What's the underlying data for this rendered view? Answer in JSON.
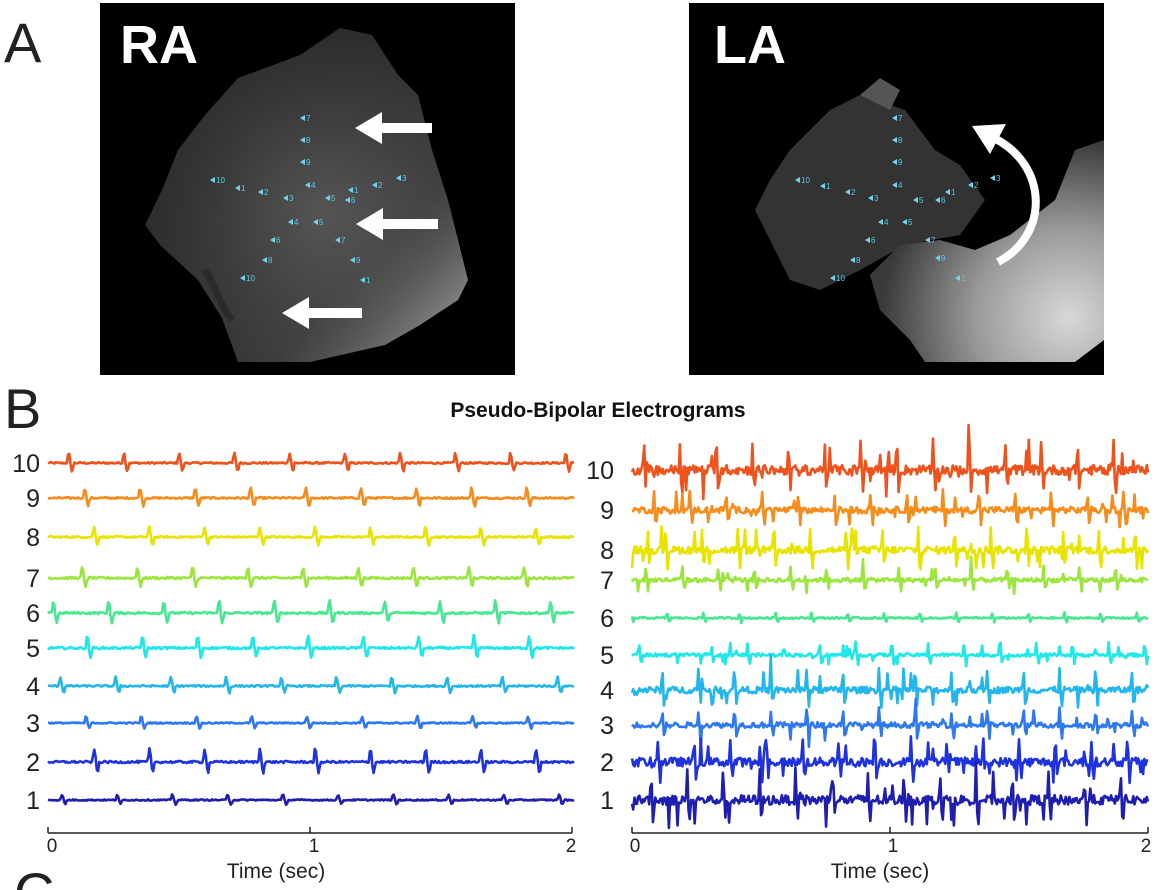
{
  "panel_a": {
    "letter": "A",
    "images": [
      {
        "title": "RA",
        "annotation": "three straight arrows (wavefront direction)"
      },
      {
        "title": "LA",
        "annotation": "curved arrow (rotational activation)"
      }
    ],
    "electrode_labels": [
      "7",
      "8",
      "9",
      "10",
      "1",
      "2",
      "3",
      "4",
      "5",
      "6",
      "1",
      "2",
      "3",
      "4",
      "5",
      "6",
      "7",
      "8",
      "9",
      "10",
      "1",
      "2",
      "3",
      "4",
      "5",
      "6",
      "7",
      "8",
      "9",
      "10",
      "11",
      "12",
      "13",
      "14"
    ]
  },
  "panel_b": {
    "letter": "B",
    "title": "Pseudo-Bipolar Electrograms",
    "channel_labels": [
      "10",
      "9",
      "8",
      "7",
      "6",
      "5",
      "4",
      "3",
      "2",
      "1"
    ],
    "colors": [
      "#f0521c",
      "#f68c1c",
      "#e8e400",
      "#9be63c",
      "#47e890",
      "#1ee8e8",
      "#23b6ec",
      "#2e78f0",
      "#1e32e0",
      "#1e1eb0"
    ],
    "xlabel": "Time (sec)",
    "xticks": [
      "0",
      "1",
      "2"
    ]
  },
  "panel_c": {
    "letter": "C"
  },
  "chart_data": [
    {
      "type": "line",
      "title": "Pseudo-Bipolar Electrograms",
      "xlabel": "Time (sec)",
      "ylabel": "",
      "xlim": [
        0,
        2
      ],
      "x_ticks": [
        0,
        1,
        2
      ],
      "region": "RA",
      "pattern": "regular periodic activation, cycle length ~0.21 s",
      "cycle_length_sec": 0.21,
      "series": [
        {
          "name": "10",
          "noise": 0.08,
          "spike": 0.45
        },
        {
          "name": "9",
          "noise": 0.08,
          "spike": 0.45
        },
        {
          "name": "8",
          "noise": 0.08,
          "spike": 0.45
        },
        {
          "name": "7",
          "noise": 0.1,
          "spike": 0.5
        },
        {
          "name": "6",
          "noise": 0.1,
          "spike": 0.55
        },
        {
          "name": "5",
          "noise": 0.1,
          "spike": 0.55
        },
        {
          "name": "4",
          "noise": 0.08,
          "spike": 0.4
        },
        {
          "name": "3",
          "noise": 0.06,
          "spike": 0.3
        },
        {
          "name": "2",
          "noise": 0.1,
          "spike": 0.6
        },
        {
          "name": "1",
          "noise": 0.06,
          "spike": 0.25
        }
      ]
    },
    {
      "type": "line",
      "title": "Pseudo-Bipolar Electrograms",
      "xlabel": "Time (sec)",
      "ylabel": "",
      "xlim": [
        0,
        2
      ],
      "x_ticks": [
        0,
        1,
        2
      ],
      "region": "LA",
      "pattern": "irregular, fractionated activation",
      "cycle_length_sec": 0.14,
      "series": [
        {
          "name": "10",
          "noise": 0.45,
          "spike": 1.2
        },
        {
          "name": "9",
          "noise": 0.3,
          "spike": 0.8
        },
        {
          "name": "8",
          "noise": 0.35,
          "spike": 1.0
        },
        {
          "name": "7",
          "noise": 0.2,
          "spike": 0.6
        },
        {
          "name": "6",
          "noise": 0.08,
          "spike": 0.25
        },
        {
          "name": "5",
          "noise": 0.15,
          "spike": 0.55
        },
        {
          "name": "4",
          "noise": 0.3,
          "spike": 0.9
        },
        {
          "name": "3",
          "noise": 0.25,
          "spike": 0.7
        },
        {
          "name": "2",
          "noise": 0.4,
          "spike": 1.0
        },
        {
          "name": "1",
          "noise": 0.45,
          "spike": 1.3
        }
      ]
    }
  ]
}
